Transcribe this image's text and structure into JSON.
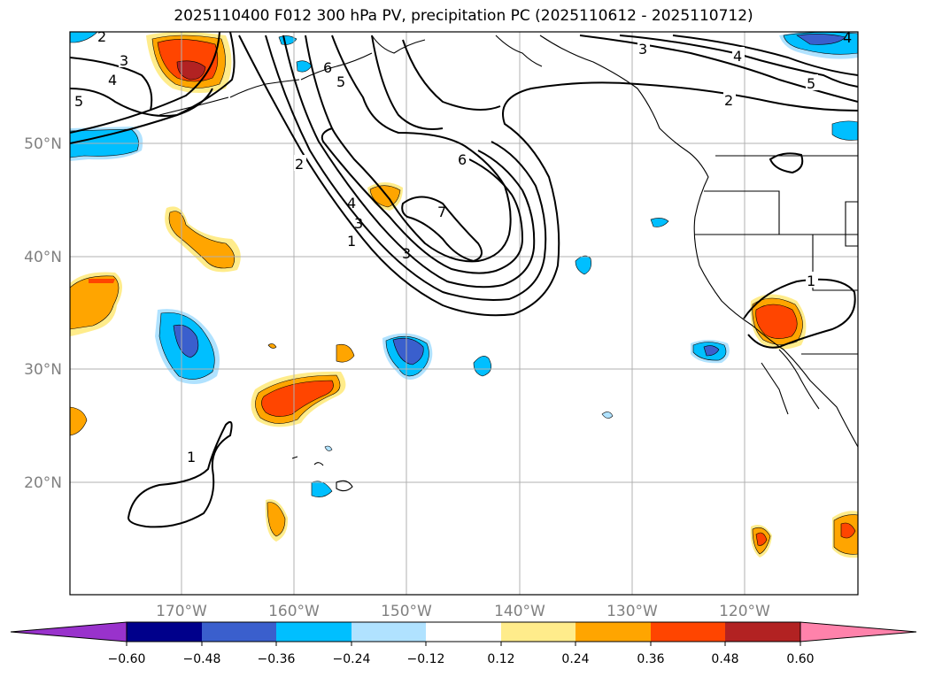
{
  "title": "2025110400 F012 300 hPa PV, precipitation PC (2025110612 - 2025110712)",
  "axes": {
    "lat_labels": [
      "50°N",
      "40°N",
      "30°N",
      "20°N"
    ],
    "lon_labels": [
      "170°W",
      "160°W",
      "150°W",
      "140°W",
      "130°W",
      "120°W"
    ],
    "label_color": "#808080",
    "grid_color": "#b0b0b0"
  },
  "contour_labels": [
    "1",
    "2",
    "3",
    "4",
    "5",
    "6",
    "7"
  ],
  "colorbar": {
    "colors": [
      "#9932cc",
      "#00008b",
      "#3a5fcd",
      "#00bfff",
      "#b0e2ff",
      "#ffffff",
      "#ffec8b",
      "#ffa500",
      "#ff4500",
      "#b22222",
      "#ff82ab"
    ],
    "tick_labels": [
      "−0.60",
      "−0.48",
      "−0.36",
      "−0.24",
      "−0.12",
      "0.12",
      "0.24",
      "0.36",
      "0.48",
      "0.60"
    ]
  }
}
